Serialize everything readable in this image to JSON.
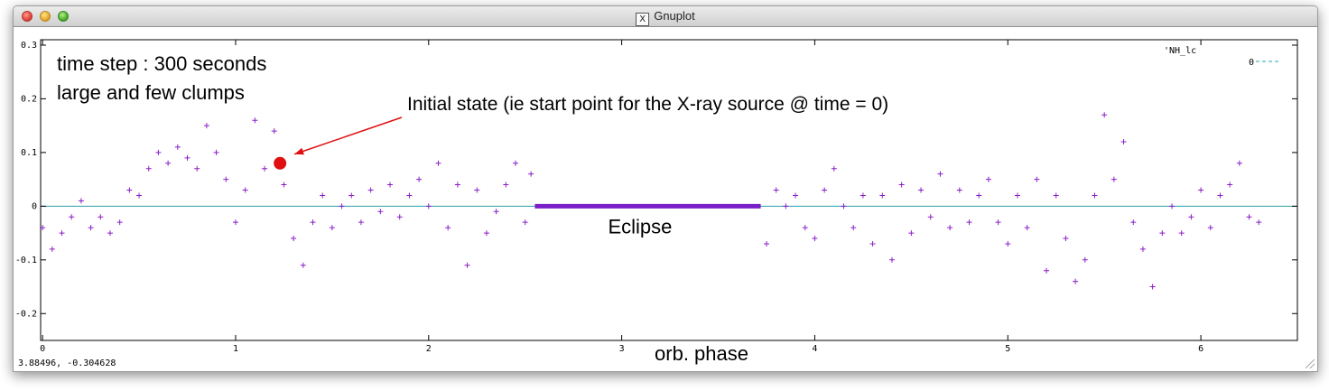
{
  "window": {
    "title": "Gnuplot",
    "status_text": "3.88496, -0.304628",
    "x_icon": "X"
  },
  "chart_data": {
    "type": "scatter",
    "marker": "+",
    "point_color": "#8a1ec8",
    "zero_line_color": "#2aa0a8",
    "legend": {
      "label": "'NH_lc",
      "entry": "0",
      "placement": "top-right"
    },
    "xlabel": "orb. phase",
    "ylabel": "",
    "xlim": [
      -0.01,
      6.5
    ],
    "ylim": [
      -0.25,
      0.31
    ],
    "xticks": [
      0,
      1,
      2,
      3,
      4,
      5,
      6
    ],
    "yticks": [
      -0.2,
      -0.1,
      0,
      0.1,
      0.2,
      0.3
    ],
    "grid": false,
    "annotations": {
      "note_line1": "time step : 300 seconds",
      "note_line2": "large and few clumps",
      "initial_state": "Initial state (ie start point for the X-ray source @ time = 0)",
      "initial_point": {
        "x": 1.23,
        "y": 0.08
      },
      "eclipse_label": "Eclipse",
      "eclipse_range": [
        2.55,
        3.72
      ],
      "eclipse_color": "#7a1ec8",
      "marker_color": "#e01010",
      "arrow_color": "#e01010"
    },
    "series": [
      {
        "x": [
          0.0,
          0.05,
          0.1,
          0.15,
          0.2,
          0.25,
          0.3,
          0.35,
          0.4,
          0.45,
          0.5,
          0.55,
          0.6,
          0.65,
          0.7,
          0.75,
          0.8,
          0.85,
          0.9,
          0.95,
          1.0,
          1.05,
          1.1,
          1.15,
          1.2,
          1.25,
          1.3,
          1.35,
          1.4,
          1.45,
          1.5,
          1.55,
          1.6,
          1.65,
          1.7,
          1.75,
          1.8,
          1.85,
          1.9,
          1.95,
          2.0,
          2.05,
          2.1,
          2.15,
          2.2,
          2.25,
          2.3,
          2.35,
          2.4,
          2.45,
          2.5,
          2.53,
          3.75,
          3.8,
          3.85,
          3.9,
          3.95,
          4.0,
          4.05,
          4.1,
          4.15,
          4.2,
          4.25,
          4.3,
          4.35,
          4.4,
          4.45,
          4.5,
          4.55,
          4.6,
          4.65,
          4.7,
          4.75,
          4.8,
          4.85,
          4.9,
          4.95,
          5.0,
          5.05,
          5.1,
          5.15,
          5.2,
          5.25,
          5.3,
          5.35,
          5.4,
          5.45,
          5.5,
          5.55,
          5.6,
          5.65,
          5.7,
          5.75,
          5.8,
          5.85,
          5.9,
          5.95,
          6.0,
          6.05,
          6.1,
          6.15,
          6.2,
          6.25,
          6.3
        ],
        "y": [
          -0.04,
          -0.08,
          -0.05,
          -0.02,
          0.01,
          -0.04,
          -0.02,
          -0.05,
          -0.03,
          0.03,
          0.02,
          0.07,
          0.1,
          0.08,
          0.11,
          0.09,
          0.07,
          0.15,
          0.1,
          0.05,
          -0.03,
          0.03,
          0.16,
          0.07,
          0.14,
          0.04,
          -0.06,
          -0.11,
          -0.03,
          0.02,
          -0.04,
          0.0,
          0.02,
          -0.03,
          0.03,
          -0.01,
          0.04,
          -0.02,
          0.02,
          0.05,
          0.0,
          0.08,
          -0.04,
          0.04,
          -0.11,
          0.03,
          -0.05,
          -0.01,
          0.04,
          0.08,
          -0.03,
          0.06,
          -0.07,
          0.03,
          0.0,
          0.02,
          -0.04,
          -0.06,
          0.03,
          0.07,
          0.0,
          -0.04,
          0.02,
          -0.07,
          0.02,
          -0.1,
          0.04,
          -0.05,
          0.03,
          -0.02,
          0.06,
          -0.04,
          0.03,
          -0.03,
          0.02,
          0.05,
          -0.03,
          -0.07,
          0.02,
          -0.04,
          0.05,
          -0.12,
          0.02,
          -0.06,
          -0.14,
          -0.1,
          0.02,
          0.17,
          0.05,
          0.12,
          -0.03,
          -0.08,
          -0.15,
          -0.05,
          0.0,
          -0.05,
          -0.02,
          0.03,
          -0.04,
          0.02,
          0.04,
          0.08,
          -0.02,
          -0.03
        ]
      }
    ]
  }
}
